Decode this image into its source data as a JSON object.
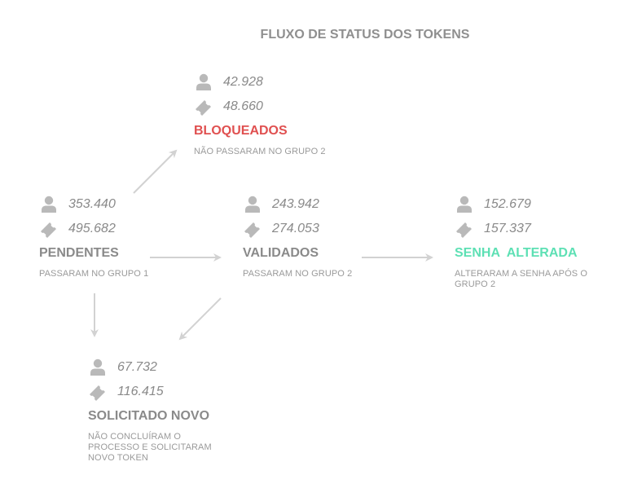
{
  "title": "FLUXO DE STATUS DOS TOKENS",
  "icons": {
    "users": "user-icon",
    "tokens": "ticket-icon",
    "icon_color": "#b9b9b9",
    "arrow_color": "#d2d2d2"
  },
  "nodes": {
    "bloqueados": {
      "users": "42.928",
      "tokens": "48.660",
      "name": "BLOQUEADOS",
      "desc": "NÃO PASSARAM NO GRUPO 2",
      "color": "#e05050"
    },
    "pendentes": {
      "users": "353.440",
      "tokens": "495.682",
      "name": "PENDENTES",
      "desc": "PASSARAM NO GRUPO 1",
      "color": "#8a8a8a"
    },
    "validados": {
      "users": "243.942",
      "tokens": "274.053",
      "name": "VALIDADOS",
      "desc": "PASSARAM NO GRUPO 2",
      "color": "#8a8a8a"
    },
    "senha_alterada": {
      "users": "152.679",
      "tokens": "157.337",
      "name": "SENHA  ALTERADA",
      "desc": "ALTERARAM A SENHA APÓS O GRUPO 2",
      "color": "#5de0b4"
    },
    "solicitado_novo": {
      "users": "67.732",
      "tokens": "116.415",
      "name": "SOLICITADO NOVO",
      "desc": "NÃO CONCLUÍRAM O PROCESSO E SOLICITARAM NOVO TOKEN",
      "color": "#8a8a8a"
    }
  }
}
